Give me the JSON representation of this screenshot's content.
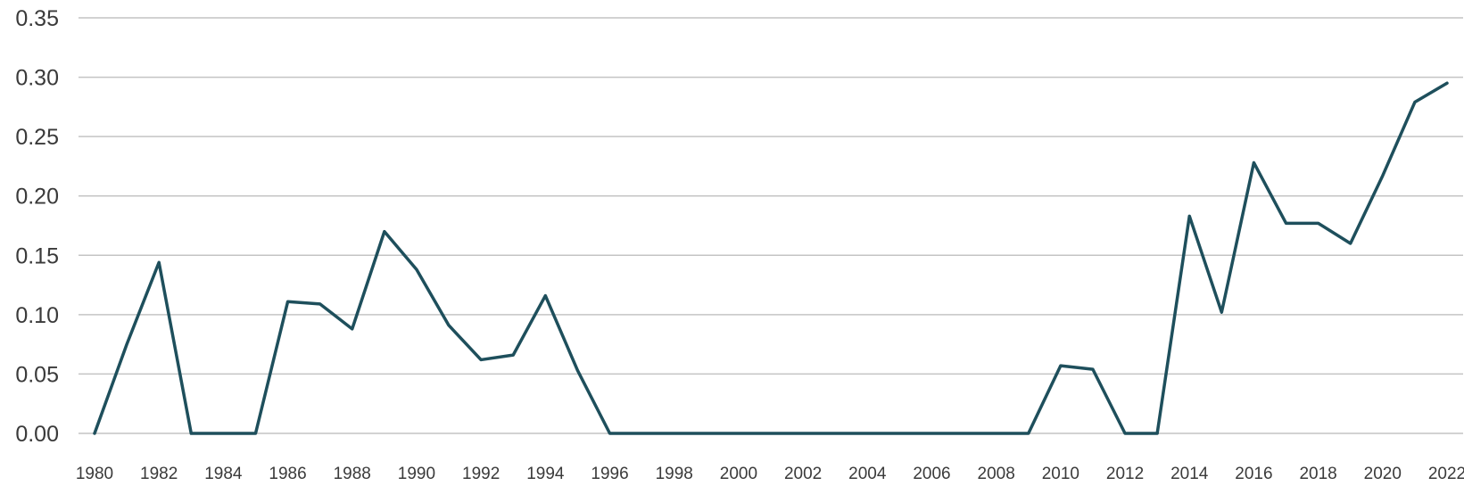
{
  "chart_data": {
    "type": "line",
    "title": "",
    "xlabel": "",
    "ylabel": "",
    "x": [
      1980,
      1981,
      1982,
      1983,
      1984,
      1985,
      1986,
      1987,
      1988,
      1989,
      1990,
      1991,
      1992,
      1993,
      1994,
      1995,
      1996,
      1997,
      1998,
      1999,
      2000,
      2001,
      2002,
      2003,
      2004,
      2005,
      2006,
      2007,
      2008,
      2009,
      2010,
      2011,
      2012,
      2013,
      2014,
      2015,
      2016,
      2017,
      2018,
      2019,
      2020,
      2021,
      2022
    ],
    "x_tick_labels": [
      "1980",
      "1982",
      "1984",
      "1986",
      "1988",
      "1990",
      "1992",
      "1994",
      "1996",
      "1998",
      "2000",
      "2002",
      "2004",
      "2006",
      "2008",
      "2010",
      "2012",
      "2014",
      "2016",
      "2018",
      "2020",
      "2022"
    ],
    "y_tick_labels": [
      "0.00",
      "0.05",
      "0.10",
      "0.15",
      "0.20",
      "0.25",
      "0.30",
      "0.35"
    ],
    "ylim": [
      0,
      0.35
    ],
    "xlim": [
      1980,
      2022
    ],
    "grid": true,
    "legend": "none",
    "series": [
      {
        "color": "#1e4f5c",
        "values": [
          0.0,
          0.075,
          0.144,
          0.0,
          0.0,
          0.0,
          0.111,
          0.109,
          0.088,
          0.17,
          0.138,
          0.091,
          0.062,
          0.066,
          0.116,
          0.053,
          0.0,
          0.0,
          0.0,
          0.0,
          0.0,
          0.0,
          0.0,
          0.0,
          0.0,
          0.0,
          0.0,
          0.0,
          0.0,
          0.0,
          0.057,
          0.054,
          0.0,
          0.0,
          0.183,
          0.102,
          0.228,
          0.177,
          0.177,
          0.16,
          0.217,
          0.279,
          0.295
        ]
      }
    ]
  }
}
